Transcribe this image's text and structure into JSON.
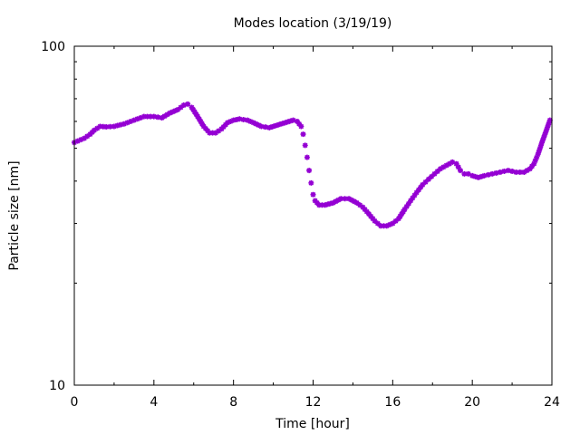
{
  "chart_data": {
    "type": "scatter",
    "title": "Modes location (3/19/19)",
    "xlabel": "Time [hour]",
    "ylabel": "Particle size [nm]",
    "xlim": [
      0,
      24
    ],
    "ylim": [
      10,
      100
    ],
    "yscale": "log",
    "xticks": [
      0,
      4,
      8,
      12,
      16,
      20,
      24
    ],
    "yticks": [
      10,
      100
    ],
    "grid": false,
    "legend": "none",
    "marker_color": "#9400D3",
    "series": [
      {
        "points": [
          [
            0.0,
            52.0
          ],
          [
            0.5,
            53.5
          ],
          [
            0.8,
            55.0
          ],
          [
            1.0,
            56.5
          ],
          [
            1.3,
            58.0
          ],
          [
            1.6,
            57.8
          ],
          [
            2.0,
            58.0
          ],
          [
            2.5,
            59.0
          ],
          [
            3.0,
            60.5
          ],
          [
            3.5,
            62.0
          ],
          [
            4.0,
            62.0
          ],
          [
            4.4,
            61.5
          ],
          [
            4.8,
            63.5
          ],
          [
            5.2,
            65.0
          ],
          [
            5.5,
            67.0
          ],
          [
            5.7,
            67.5
          ],
          [
            5.9,
            66.0
          ],
          [
            6.2,
            62.0
          ],
          [
            6.5,
            58.0
          ],
          [
            6.8,
            55.5
          ],
          [
            7.1,
            55.5
          ],
          [
            7.4,
            57.0
          ],
          [
            7.7,
            59.5
          ],
          [
            8.0,
            60.5
          ],
          [
            8.3,
            61.0
          ],
          [
            8.7,
            60.5
          ],
          [
            9.0,
            59.5
          ],
          [
            9.4,
            58.0
          ],
          [
            9.8,
            57.5
          ],
          [
            10.2,
            58.5
          ],
          [
            10.6,
            59.5
          ],
          [
            11.0,
            60.5
          ],
          [
            11.2,
            60.0
          ],
          [
            11.4,
            58.0
          ],
          [
            11.5,
            55.0
          ],
          [
            11.6,
            51.0
          ],
          [
            11.7,
            47.0
          ],
          [
            11.8,
            43.0
          ],
          [
            11.9,
            39.5
          ],
          [
            12.0,
            36.5
          ],
          [
            12.1,
            35.0
          ],
          [
            12.3,
            34.0
          ],
          [
            12.6,
            34.0
          ],
          [
            13.0,
            34.5
          ],
          [
            13.4,
            35.5
          ],
          [
            13.8,
            35.5
          ],
          [
            14.2,
            34.5
          ],
          [
            14.5,
            33.5
          ],
          [
            14.8,
            32.0
          ],
          [
            15.1,
            30.5
          ],
          [
            15.4,
            29.5
          ],
          [
            15.7,
            29.5
          ],
          [
            16.0,
            30.0
          ],
          [
            16.3,
            31.0
          ],
          [
            16.6,
            33.0
          ],
          [
            16.9,
            35.0
          ],
          [
            17.2,
            37.0
          ],
          [
            17.5,
            39.0
          ],
          [
            17.8,
            40.5
          ],
          [
            18.1,
            42.0
          ],
          [
            18.4,
            43.5
          ],
          [
            18.7,
            44.5
          ],
          [
            19.0,
            45.5
          ],
          [
            19.2,
            45.0
          ],
          [
            19.4,
            43.0
          ],
          [
            19.6,
            42.0
          ],
          [
            19.8,
            42.0
          ],
          [
            20.0,
            41.5
          ],
          [
            20.3,
            41.0
          ],
          [
            20.6,
            41.5
          ],
          [
            21.0,
            42.0
          ],
          [
            21.4,
            42.5
          ],
          [
            21.8,
            43.0
          ],
          [
            22.2,
            42.5
          ],
          [
            22.6,
            42.5
          ],
          [
            22.9,
            43.5
          ],
          [
            23.1,
            45.0
          ],
          [
            23.3,
            48.0
          ],
          [
            23.5,
            52.0
          ],
          [
            23.7,
            56.0
          ],
          [
            23.9,
            60.5
          ]
        ]
      }
    ]
  }
}
